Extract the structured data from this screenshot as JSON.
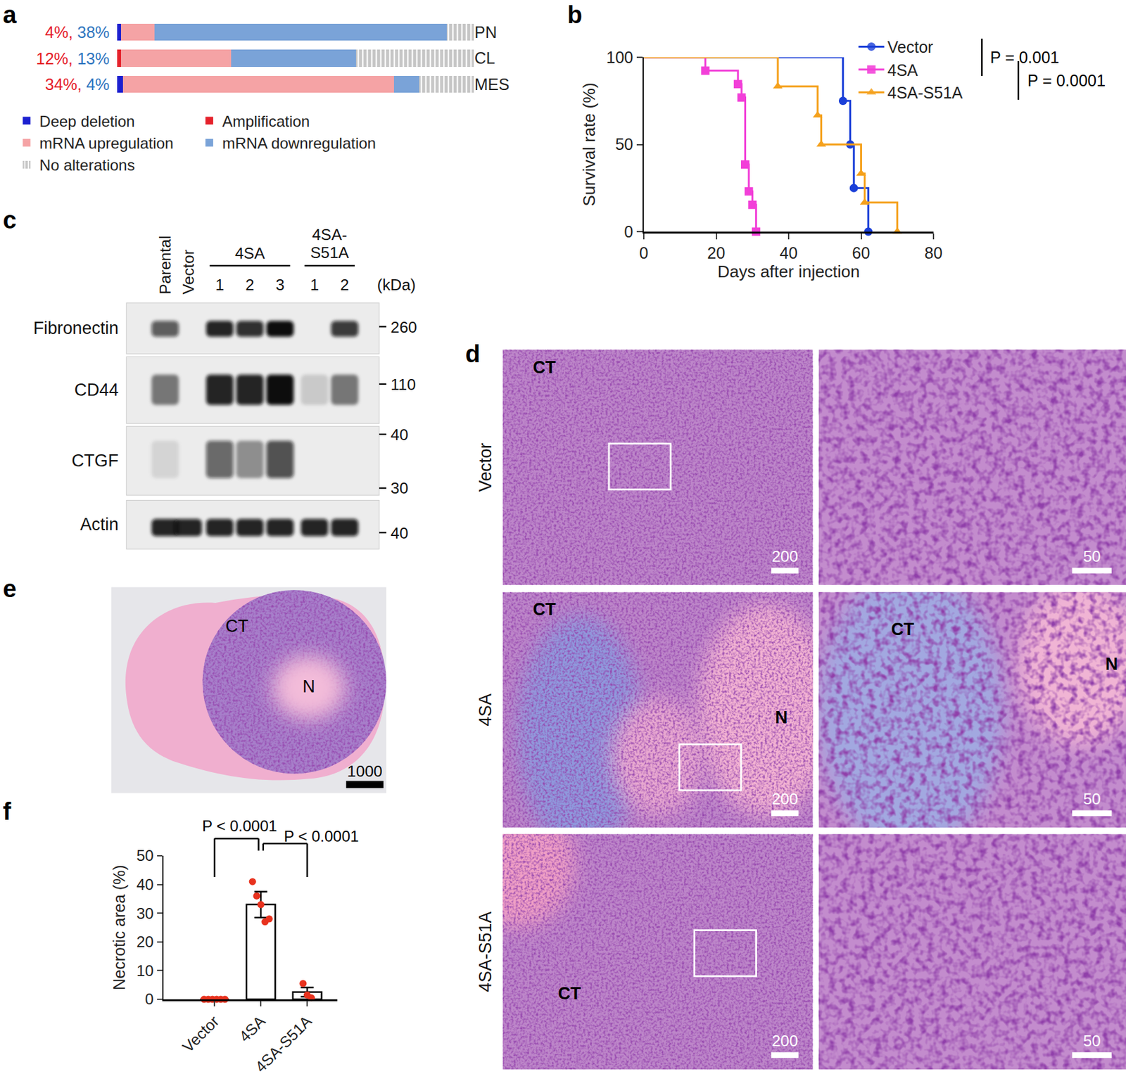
{
  "chart_data": [
    {
      "panel": "a",
      "type": "bar",
      "orientation": "horizontal",
      "stacked": true,
      "categories": [
        "PN",
        "CL",
        "MES"
      ],
      "series": [
        {
          "name": "Deep deletion",
          "color": "#1b1fd0",
          "values": [
            1,
            0,
            1.6
          ]
        },
        {
          "name": "Amplification",
          "color": "#e5202a",
          "values": [
            0,
            1,
            0
          ]
        },
        {
          "name": "mRNA upregulation",
          "color": "#f5a3a5",
          "values": [
            9.5,
            31,
            76
          ]
        },
        {
          "name": "mRNA downregulation",
          "color": "#7aa3d8",
          "values": [
            82,
            35,
            7
          ]
        },
        {
          "name": "No alterations",
          "color": "#c6c6c6",
          "values": [
            7.5,
            33,
            15.4
          ],
          "marker": "striped"
        }
      ],
      "row_annotations": [
        [
          {
            "text": "4%,",
            "color": "#e5202a"
          },
          {
            "text": "38%",
            "color": "#2f76c0"
          }
        ],
        [
          {
            "text": "12%,",
            "color": "#e5202a"
          },
          {
            "text": "13%",
            "color": "#2f76c0"
          }
        ],
        [
          {
            "text": "34%,",
            "color": "#e5202a"
          },
          {
            "text": "4%",
            "color": "#2f76c0"
          }
        ]
      ],
      "xlim": [
        0,
        100
      ],
      "tick_labels": "y",
      "legend": "bottom"
    },
    {
      "panel": "b",
      "type": "line",
      "line_style": "step",
      "xlabel": "Days after injection",
      "ylabel": "Survival rate (%)",
      "xlim": [
        0,
        80
      ],
      "xticks": [
        0,
        20,
        40,
        60,
        80
      ],
      "ylim": [
        0,
        100
      ],
      "yticks": [
        0,
        50,
        100
      ],
      "legend": "top right",
      "series": [
        {
          "name": "Vector",
          "color": "#1a3fd8",
          "marker": "circle",
          "x": [
            0,
            55,
            57,
            58,
            62
          ],
          "values": [
            100,
            75,
            50,
            25,
            0
          ]
        },
        {
          "name": "4SA",
          "color": "#f23fd8",
          "marker": "square",
          "x": [
            0,
            17,
            26,
            27,
            28,
            29,
            30,
            31
          ],
          "values": [
            100,
            92.3,
            84.6,
            76.9,
            38.5,
            23.1,
            15.4,
            0
          ]
        },
        {
          "name": "4SA-S51A",
          "color": "#f5a11c",
          "marker": "triangle-up",
          "x": [
            0,
            37,
            48,
            49,
            60,
            61,
            70
          ],
          "values": [
            100,
            83.3,
            66.7,
            50,
            33.3,
            16.7,
            0
          ]
        }
      ],
      "annotations": [
        {
          "text": "P = 0.001",
          "between": [
            "Vector",
            "4SA"
          ]
        },
        {
          "text": "P = 0.0001",
          "between": [
            "4SA",
            "4SA-S51A"
          ]
        }
      ]
    },
    {
      "panel": "f",
      "type": "bar",
      "ylabel": "Necrotic area (%)",
      "categories": [
        "Vector",
        "4SA",
        "4SA-S51A"
      ],
      "values": [
        0,
        33,
        2.5
      ],
      "errors": [
        0,
        4.5,
        1.6
      ],
      "points": [
        [
          0,
          0,
          0,
          0,
          0,
          0
        ],
        [
          41,
          36,
          33,
          27,
          28
        ],
        [
          5.5,
          1.5,
          0.5
        ]
      ],
      "color": "#ffffff",
      "ylim": [
        0,
        50
      ],
      "yticks": [
        0,
        10,
        20,
        30,
        40,
        50
      ],
      "annotations": [
        {
          "text": "P < 0.0001",
          "between": [
            "Vector",
            "4SA"
          ]
        },
        {
          "text": "P < 0.0001",
          "between": [
            "4SA",
            "4SA-S51A"
          ]
        }
      ]
    }
  ],
  "blot": {
    "panel": "c",
    "unit": "(kDa)",
    "lanes": [
      {
        "label": "Parental"
      },
      {
        "label": "Vector"
      },
      {
        "group": "4SA",
        "label": "1"
      },
      {
        "group": "4SA",
        "label": "2"
      },
      {
        "group": "4SA",
        "label": "3"
      },
      {
        "group": "4SA-S51A",
        "label": "1"
      },
      {
        "group": "4SA-S51A",
        "label": "2"
      }
    ],
    "proteins": [
      {
        "name": "Fibronectin",
        "bands": [
          0.65,
          0,
          0.9,
          0.85,
          1,
          0,
          0.8
        ],
        "markers": [
          260
        ]
      },
      {
        "name": "CD44",
        "bands": [
          0.5,
          0,
          0.9,
          0.9,
          1,
          0.15,
          0.5
        ],
        "markers": [
          110
        ]
      },
      {
        "name": "CTGF",
        "bands": [
          0.1,
          0,
          0.6,
          0.4,
          0.7,
          0,
          0
        ],
        "markers": [
          40,
          30
        ]
      },
      {
        "name": "Actin",
        "bands": [
          0.9,
          0.9,
          0.9,
          0.9,
          0.9,
          0.9,
          0.9
        ],
        "markers": [
          40
        ]
      }
    ]
  },
  "histology": {
    "panel": "d",
    "rows": [
      {
        "label": "Vector",
        "images": [
          {
            "labels": [
              "CT"
            ],
            "scale_bar": 200
          },
          {
            "labels": [],
            "scale_bar": 50
          }
        ]
      },
      {
        "label": "4SA",
        "images": [
          {
            "labels": [
              "CT",
              "N"
            ],
            "scale_bar": 200
          },
          {
            "labels": [
              "CT",
              "N"
            ],
            "scale_bar": 50
          }
        ]
      },
      {
        "label": "4SA-S51A",
        "images": [
          {
            "labels": [
              "CT"
            ],
            "scale_bar": 200
          },
          {
            "labels": [],
            "scale_bar": 50
          }
        ]
      }
    ]
  },
  "section": {
    "panel": "e",
    "labels": [
      "CT",
      "N"
    ],
    "scale_bar": 1000
  }
}
